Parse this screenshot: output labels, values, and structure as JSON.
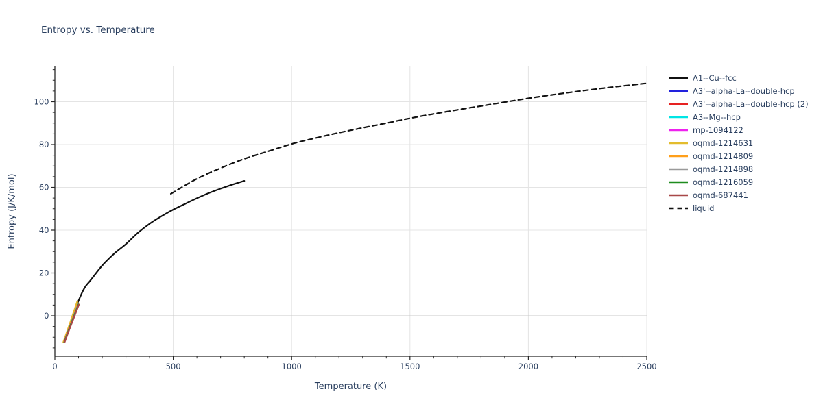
{
  "title": "Entropy vs. Temperature",
  "colors": {
    "text": "#2a3f5f",
    "axis": "#262626",
    "grid": "#e4e4e4",
    "zero_grid": "#c9c9c9",
    "background": "#ffffff"
  },
  "chart_data": {
    "type": "line",
    "title": "Entropy vs. Temperature",
    "xlabel": "Temperature (K)",
    "ylabel": "Entropy (J/K/mol)",
    "xlim": [
      0,
      2500
    ],
    "ylim": [
      -18.9,
      116.5
    ],
    "xticks": [
      0,
      500,
      1000,
      1500,
      2000,
      2500
    ],
    "yticks": [
      0,
      20,
      40,
      60,
      80,
      100
    ],
    "x_minor_step": 100,
    "y_minor_step": 5,
    "grid": true,
    "legend_position": "top-right",
    "series": [
      {
        "name": "A1--Cu--fcc",
        "color": "#111111",
        "dash": "solid",
        "x": [
          40,
          70,
          100,
          125,
          150,
          200,
          250,
          300,
          350,
          400,
          450,
          500,
          550,
          600,
          650,
          700,
          750,
          800
        ],
        "y": [
          -12,
          -2.5,
          7,
          13,
          16.5,
          23.5,
          29,
          33.5,
          38.7,
          43,
          46.5,
          49.6,
          52.3,
          54.9,
          57.3,
          59.4,
          61.3,
          63
        ]
      },
      {
        "name": "A3'--alpha-La--double-hcp",
        "color": "#2222dd",
        "dash": "solid",
        "x": [
          40,
          60,
          80,
          100
        ],
        "y": [
          -12.2,
          -6.2,
          -0.5,
          5.2
        ]
      },
      {
        "name": "A3'--alpha-La--double-hcp (2)",
        "color": "#e62222",
        "dash": "solid",
        "x": [
          40,
          60,
          80,
          100
        ],
        "y": [
          -12.2,
          -6.2,
          -0.5,
          5.2
        ]
      },
      {
        "name": "A3--Mg--hcp",
        "color": "#00e5e5",
        "dash": "solid",
        "x": [
          40,
          60,
          80,
          100
        ],
        "y": [
          -12.2,
          -6.2,
          -0.5,
          5.2
        ]
      },
      {
        "name": "mp-1094122",
        "color": "#ee22ee",
        "dash": "solid",
        "x": [
          40,
          60,
          80,
          100
        ],
        "y": [
          -12.2,
          -6.2,
          -0.5,
          5.2
        ]
      },
      {
        "name": "oqmd-1214631",
        "color": "#e3bc2d",
        "dash": "solid",
        "x": [
          36,
          56,
          76,
          95
        ],
        "y": [
          -12.3,
          -6.0,
          0.5,
          6.8
        ]
      },
      {
        "name": "oqmd-1214809",
        "color": "#ff9f1a",
        "dash": "solid",
        "x": [
          37.5,
          57.5,
          77.5,
          97
        ],
        "y": [
          -12.3,
          -6.1,
          0.0,
          5.9
        ]
      },
      {
        "name": "oqmd-1214898",
        "color": "#9a9a9a",
        "dash": "solid",
        "x": [
          39,
          59,
          79,
          98.5
        ],
        "y": [
          -12.3,
          -6.2,
          -0.3,
          5.6
        ]
      },
      {
        "name": "oqmd-1216059",
        "color": "#1e8c1e",
        "dash": "solid",
        "x": [
          40,
          60,
          80,
          100
        ],
        "y": [
          -12.3,
          -6.2,
          -0.5,
          5.3
        ]
      },
      {
        "name": "oqmd-687441",
        "color": "#a84848",
        "dash": "solid",
        "x": [
          41,
          61,
          81,
          101
        ],
        "y": [
          -12.3,
          -6.3,
          -0.6,
          5.2
        ]
      },
      {
        "name": "liquid",
        "color": "#111111",
        "dash": "dashed",
        "x": [
          490,
          600,
          700,
          800,
          900,
          1000,
          1100,
          1200,
          1300,
          1400,
          1500,
          1600,
          1700,
          1800,
          1900,
          2000,
          2100,
          2200,
          2300,
          2400,
          2500
        ],
        "y": [
          57,
          64,
          69,
          73.3,
          76.8,
          80.3,
          83,
          85.5,
          87.8,
          90,
          92.3,
          94.3,
          96.2,
          98,
          99.8,
          101.6,
          103.2,
          104.7,
          106.1,
          107.4,
          108.6
        ]
      }
    ]
  }
}
